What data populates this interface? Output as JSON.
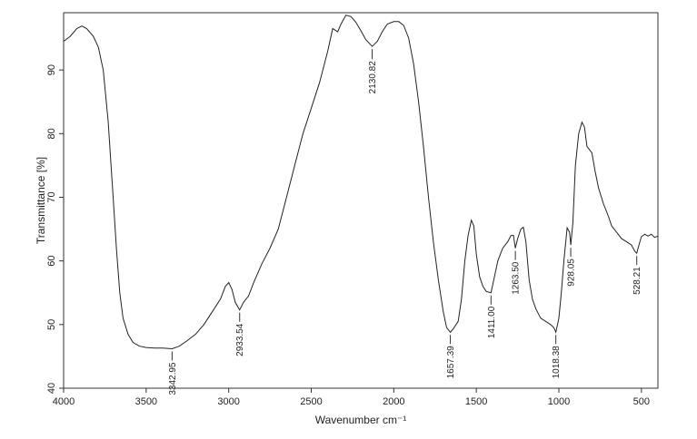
{
  "chart_data": {
    "type": "line",
    "title": "",
    "xlabel": "Wavenumber cm⁻¹",
    "ylabel": "Transmittance [%]",
    "xlim": [
      4000,
      400
    ],
    "ylim": [
      40,
      99
    ],
    "x_reversed": true,
    "x_ticks": [
      4000,
      3500,
      3000,
      2500,
      2000,
      1500,
      1000,
      500
    ],
    "y_ticks": [
      40,
      50,
      60,
      70,
      80,
      90
    ],
    "grid": false,
    "line_color": "#222222",
    "series": [
      {
        "points": [
          [
            4000,
            94.5
          ],
          [
            3960,
            95.3
          ],
          [
            3920,
            96.5
          ],
          [
            3890,
            96.9
          ],
          [
            3860,
            96.5
          ],
          [
            3820,
            95.3
          ],
          [
            3790,
            93.6
          ],
          [
            3760,
            90.0
          ],
          [
            3730,
            82.0
          ],
          [
            3700,
            70.0
          ],
          [
            3680,
            62.0
          ],
          [
            3660,
            55.0
          ],
          [
            3640,
            51.0
          ],
          [
            3610,
            48.5
          ],
          [
            3580,
            47.2
          ],
          [
            3540,
            46.6
          ],
          [
            3500,
            46.4
          ],
          [
            3450,
            46.3
          ],
          [
            3400,
            46.3
          ],
          [
            3342.95,
            46.2
          ],
          [
            3300,
            46.6
          ],
          [
            3250,
            47.5
          ],
          [
            3200,
            48.5
          ],
          [
            3150,
            50.0
          ],
          [
            3100,
            52.0
          ],
          [
            3050,
            54.0
          ],
          [
            3020,
            56.0
          ],
          [
            3000,
            56.6
          ],
          [
            2980,
            55.5
          ],
          [
            2960,
            53.5
          ],
          [
            2933.54,
            52.3
          ],
          [
            2910,
            53.5
          ],
          [
            2880,
            54.5
          ],
          [
            2850,
            56.5
          ],
          [
            2800,
            59.5
          ],
          [
            2750,
            62.0
          ],
          [
            2700,
            65.0
          ],
          [
            2650,
            70.0
          ],
          [
            2600,
            75.0
          ],
          [
            2550,
            80.0
          ],
          [
            2500,
            84.0
          ],
          [
            2450,
            88.0
          ],
          [
            2400,
            93.0
          ],
          [
            2370,
            96.5
          ],
          [
            2340,
            96.0
          ],
          [
            2320,
            97.2
          ],
          [
            2290,
            98.6
          ],
          [
            2260,
            98.4
          ],
          [
            2230,
            97.5
          ],
          [
            2200,
            96.2
          ],
          [
            2170,
            94.8
          ],
          [
            2130.82,
            93.7
          ],
          [
            2100,
            94.5
          ],
          [
            2070,
            96.0
          ],
          [
            2040,
            97.2
          ],
          [
            2000,
            97.6
          ],
          [
            1970,
            97.6
          ],
          [
            1940,
            97.0
          ],
          [
            1910,
            95.0
          ],
          [
            1880,
            91.0
          ],
          [
            1850,
            85.0
          ],
          [
            1820,
            78.0
          ],
          [
            1790,
            70.0
          ],
          [
            1760,
            63.0
          ],
          [
            1730,
            57.0
          ],
          [
            1700,
            52.0
          ],
          [
            1680,
            49.5
          ],
          [
            1657.39,
            48.8
          ],
          [
            1640,
            49.3
          ],
          [
            1610,
            50.5
          ],
          [
            1590,
            54.0
          ],
          [
            1570,
            60.0
          ],
          [
            1550,
            64.0
          ],
          [
            1530,
            66.4
          ],
          [
            1515,
            65.5
          ],
          [
            1500,
            61.0
          ],
          [
            1480,
            57.5
          ],
          [
            1460,
            56.0
          ],
          [
            1440,
            55.2
          ],
          [
            1411,
            55.0
          ],
          [
            1390,
            57.5
          ],
          [
            1370,
            60.0
          ],
          [
            1340,
            62.0
          ],
          [
            1310,
            63.0
          ],
          [
            1290,
            64.0
          ],
          [
            1275,
            64.0
          ],
          [
            1263.5,
            62.0
          ],
          [
            1250,
            63.5
          ],
          [
            1230,
            65.0
          ],
          [
            1215,
            65.3
          ],
          [
            1200,
            63.0
          ],
          [
            1180,
            57.0
          ],
          [
            1160,
            54.0
          ],
          [
            1140,
            52.5
          ],
          [
            1110,
            51.0
          ],
          [
            1080,
            50.5
          ],
          [
            1050,
            50.0
          ],
          [
            1030,
            49.5
          ],
          [
            1018.38,
            48.8
          ],
          [
            1000,
            51.0
          ],
          [
            985,
            55.0
          ],
          [
            970,
            60.0
          ],
          [
            950,
            65.2
          ],
          [
            935,
            64.5
          ],
          [
            928.05,
            62.5
          ],
          [
            915,
            66.0
          ],
          [
            900,
            75.0
          ],
          [
            880,
            80.0
          ],
          [
            860,
            81.8
          ],
          [
            845,
            81.0
          ],
          [
            830,
            78.0
          ],
          [
            800,
            77.0
          ],
          [
            780,
            74.0
          ],
          [
            760,
            71.5
          ],
          [
            730,
            69.0
          ],
          [
            700,
            67.0
          ],
          [
            680,
            65.5
          ],
          [
            650,
            64.5
          ],
          [
            620,
            63.5
          ],
          [
            590,
            63.0
          ],
          [
            560,
            62.5
          ],
          [
            540,
            61.5
          ],
          [
            528.21,
            61.2
          ],
          [
            515,
            62.5
          ],
          [
            500,
            63.8
          ],
          [
            480,
            64.2
          ],
          [
            460,
            63.9
          ],
          [
            440,
            64.2
          ],
          [
            420,
            63.7
          ],
          [
            400,
            63.9
          ]
        ]
      }
    ],
    "annotations": [
      {
        "x": 3342.95,
        "label": "3342.95"
      },
      {
        "x": 2933.54,
        "label": "2933.54"
      },
      {
        "x": 2130.82,
        "label": "2130.82"
      },
      {
        "x": 1657.39,
        "label": "1657.39"
      },
      {
        "x": 1411.0,
        "label": "1411.00"
      },
      {
        "x": 1263.5,
        "label": "1263.50"
      },
      {
        "x": 1018.38,
        "label": "1018.38"
      },
      {
        "x": 928.05,
        "label": "928.05"
      },
      {
        "x": 528.21,
        "label": "528.21"
      }
    ]
  }
}
